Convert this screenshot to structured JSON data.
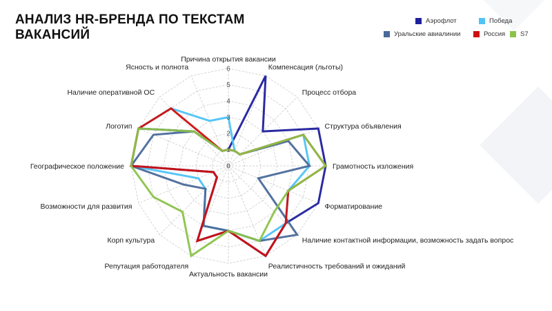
{
  "title": "АНАЛИЗ HR-БРЕНДА ПО ТЕКСТАМ ВАКАНСИЙ",
  "chart_data": {
    "type": "radar",
    "categories": [
      "Причина открытия вакансии",
      "Компенсация (льготы)",
      "Процесс отбора",
      "Структура объявления",
      "Грамотность изложения",
      "Форматирование",
      "Наличие контактной информации, возможность задать вопрос",
      "Реалистичность требований и ожиданий",
      "Актуальность вакансии",
      "Репутация работодателя",
      "Корп культура",
      "Возможности для развития",
      "Географическое положение",
      "Логотип",
      "Наличие оперативной ОС",
      "Ясность и полнота"
    ],
    "rlim": [
      0,
      6
    ],
    "ticks": [
      "0",
      "1",
      "2",
      "3",
      "4",
      "5",
      "6"
    ],
    "grid": true,
    "legend_position": "top-right",
    "series": [
      {
        "name": "Аэрофлот",
        "color": "#1f1f9e",
        "values": [
          1,
          6,
          3,
          6,
          6,
          6,
          5,
          6,
          4,
          5,
          1,
          1,
          6,
          6,
          3,
          1
        ]
      },
      {
        "name": "Победа",
        "color": "#4fc3f7",
        "values": [
          3,
          1,
          1,
          5,
          5,
          4,
          5,
          5,
          4,
          4,
          2,
          2,
          6,
          6,
          5,
          3
        ]
      },
      {
        "name": "Уральские авиалинии",
        "color": "#4a6a9a",
        "values": [
          1,
          1,
          1,
          4,
          5,
          2,
          6,
          5,
          4,
          4,
          2,
          3,
          6,
          5,
          3,
          1
        ]
      },
      {
        "name": "Россия",
        "color": "#cc1111",
        "values": [
          1,
          1,
          1,
          5,
          6,
          4,
          5,
          6,
          4,
          5,
          1,
          1,
          6,
          6,
          5,
          1
        ]
      },
      {
        "name": "S7",
        "color": "#8bc34a",
        "values": [
          1,
          1,
          1,
          5,
          6,
          4,
          4,
          5,
          4,
          6,
          4,
          5,
          6,
          6,
          3,
          1
        ]
      }
    ]
  }
}
